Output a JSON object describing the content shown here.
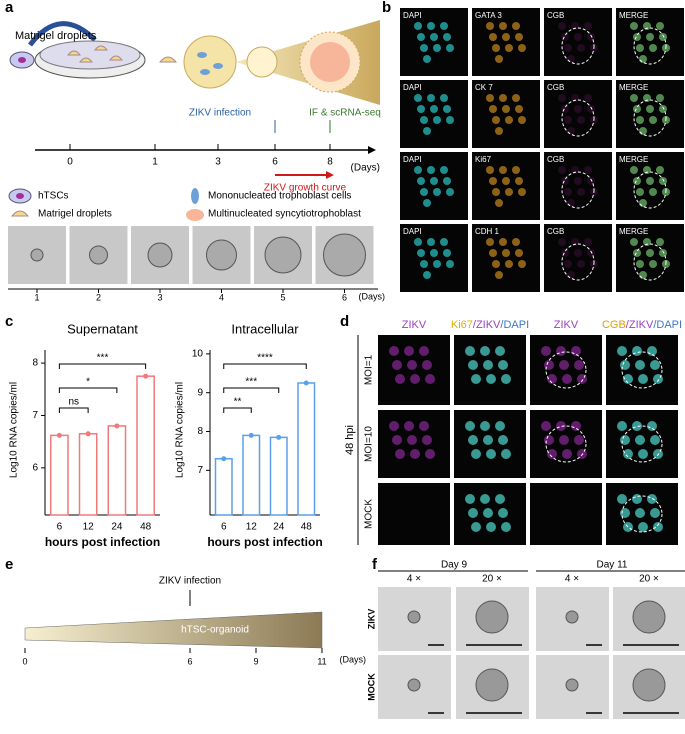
{
  "panel_labels": [
    "a",
    "b",
    "c",
    "d",
    "e",
    "f"
  ],
  "a": {
    "droplet_label": "Matrigel droplets",
    "timeline_ticks": [
      "0",
      "1",
      "3",
      "6",
      "8"
    ],
    "unit": "(Days)",
    "zikv_infection": "ZIKV infection",
    "if_scrna": "IF & scRNA-seq",
    "growth_curve": "ZIKV growth curve",
    "legend": [
      "hTSCs",
      "Matrigel droplets",
      "Mononucleated trophoblast cells",
      "Multinucleated syncytiotrophoblast"
    ],
    "strip_days": [
      "1",
      "2",
      "3",
      "4",
      "5",
      "6"
    ],
    "strip_unit": "(Days)"
  },
  "b": {
    "rows": [
      [
        "DAPI",
        "GATA 3",
        "CGB",
        "MERGE"
      ],
      [
        "DAPI",
        "CK 7",
        "CGB",
        "MERGE"
      ],
      [
        "DAPI",
        "Ki67",
        "CGB",
        "MERGE"
      ],
      [
        "DAPI",
        "CDH 1",
        "CGB",
        "MERGE"
      ]
    ]
  },
  "c": {
    "ylabel": "Log10 RNA copies/ml",
    "charts": [
      {
        "type": "bar",
        "title": "Supernatant",
        "categories": [
          "6",
          "12",
          "24",
          "48"
        ],
        "values": [
          6.62,
          6.65,
          6.8,
          7.75
        ],
        "color": "#f07a7a",
        "ylim": [
          5.1,
          8.25
        ],
        "yticks": [
          6,
          7,
          8
        ],
        "xlabel": "hours post infection",
        "significance": [
          "ns",
          "*",
          "***"
        ]
      },
      {
        "type": "bar",
        "title": "Intracellular",
        "categories": [
          "6",
          "12",
          "24",
          "48"
        ],
        "values": [
          7.3,
          7.9,
          7.85,
          9.25
        ],
        "color": "#5aa0e8",
        "ylim": [
          5.85,
          10.1
        ],
        "yticks": [
          7,
          8,
          9,
          10
        ],
        "xlabel": "hours post infection",
        "significance": [
          "**",
          "***",
          "****"
        ]
      }
    ]
  },
  "d": {
    "headers": [
      [
        "ZIKV"
      ],
      [
        "Ki67",
        "/ZIKV",
        "/DAPI"
      ],
      [
        "ZIKV"
      ],
      [
        "CGB",
        "/ZIKV",
        "/DAPI"
      ]
    ],
    "rows": [
      "MOI=1",
      "MOI=10",
      "MOCK"
    ],
    "group": "48 hpi"
  },
  "e": {
    "infection": "ZIKV infection",
    "bar_label": "hTSC-organoid",
    "ticks": [
      "0",
      "6",
      "9",
      "11"
    ],
    "unit": "(Days)"
  },
  "f": {
    "days": [
      "Day 9",
      "Day 11"
    ],
    "mags": [
      "4 ×",
      "20 ×",
      "4 ×",
      "20 ×"
    ],
    "rows": [
      "ZIKV",
      "MOCK"
    ]
  }
}
